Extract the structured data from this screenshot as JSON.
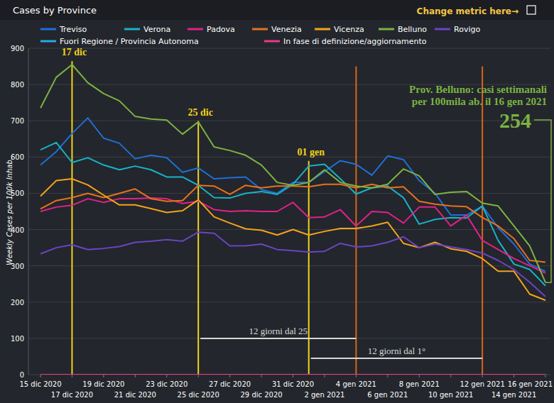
{
  "chart_data": {
    "type": "line",
    "title": "Cases by Province",
    "header_link": "Change metric here→",
    "y_label": "Weekly Cases per 100k Inhab.",
    "categories": [
      "15 dic 2020",
      null,
      "17 dic 2020",
      null,
      "19 dic 2020",
      null,
      "21 dic 2020",
      null,
      "23 dic 2020",
      null,
      "25 dic 2020",
      null,
      "27 dic 2020",
      null,
      "29 dic 2020",
      null,
      "31 dic 2020",
      null,
      "2 gen 2021",
      null,
      "4 gen 2021",
      null,
      "6 gen 2021",
      null,
      "8 gen 2021",
      null,
      "10 gen 2021",
      null,
      "12 gen 2021",
      null,
      "14 gen 2021",
      null,
      "16 gen 2021"
    ],
    "ylim": [
      0,
      900
    ],
    "yticks": [
      0,
      100,
      200,
      300,
      400,
      500,
      600,
      700,
      800,
      900
    ],
    "grid": true,
    "legend": "top",
    "series": [
      {
        "name": "Treviso",
        "color": "#1f6fd6",
        "values": [
          578,
          615,
          665,
          708,
          652,
          638,
          595,
          605,
          598,
          558,
          570,
          540,
          543,
          545,
          510,
          500,
          530,
          530,
          560,
          590,
          580,
          550,
          603,
          593,
          535,
          500,
          440,
          440,
          465,
          405,
          360,
          305,
          285
        ]
      },
      {
        "name": "Verona",
        "color": "#17b3c9",
        "values": [
          620,
          640,
          585,
          598,
          578,
          565,
          575,
          565,
          545,
          545,
          522,
          488,
          487,
          500,
          505,
          497,
          525,
          575,
          580,
          540,
          498,
          515,
          520,
          488,
          415,
          428,
          433,
          432,
          465,
          370,
          305,
          290,
          245
        ]
      },
      {
        "name": "Padova",
        "color": "#e0218a",
        "values": [
          450,
          462,
          467,
          485,
          475,
          485,
          485,
          487,
          485,
          472,
          478,
          455,
          450,
          452,
          450,
          450,
          475,
          433,
          435,
          455,
          410,
          450,
          447,
          418,
          462,
          462,
          410,
          440,
          370,
          345,
          320,
          300,
          280
        ]
      },
      {
        "name": "Venezia",
        "color": "#e8711c",
        "values": [
          457,
          480,
          488,
          500,
          488,
          500,
          512,
          485,
          478,
          480,
          522,
          520,
          497,
          522,
          515,
          520,
          520,
          518,
          525,
          525,
          515,
          525,
          515,
          518,
          478,
          470,
          465,
          463,
          433,
          410,
          375,
          315,
          310
        ]
      },
      {
        "name": "Vicenza",
        "color": "#f5a31b",
        "values": [
          492,
          535,
          540,
          523,
          495,
          468,
          468,
          458,
          447,
          452,
          482,
          435,
          418,
          402,
          398,
          385,
          400,
          385,
          395,
          403,
          403,
          410,
          420,
          362,
          350,
          365,
          347,
          340,
          320,
          285,
          285,
          222,
          205
        ]
      },
      {
        "name": "Belluno",
        "color": "#7cb342",
        "values": [
          735,
          820,
          855,
          805,
          775,
          755,
          712,
          705,
          702,
          663,
          697,
          628,
          618,
          605,
          578,
          530,
          522,
          530,
          565,
          530,
          520,
          515,
          525,
          567,
          548,
          497,
          503,
          505,
          473,
          465,
          410,
          355,
          254
        ]
      },
      {
        "name": "Rovigo",
        "color": "#6a44c4",
        "values": [
          333,
          350,
          358,
          345,
          348,
          353,
          365,
          368,
          372,
          368,
          393,
          390,
          355,
          355,
          360,
          345,
          342,
          338,
          340,
          362,
          352,
          355,
          365,
          380,
          350,
          360,
          352,
          345,
          335,
          315,
          290,
          255,
          215
        ]
      },
      {
        "name": "Fuori Regione / Provincia Autonoma",
        "color": "#2aa8e0",
        "values": [
          null,
          null,
          null,
          null,
          null,
          null,
          null,
          null,
          null,
          null,
          null,
          null,
          null,
          null,
          null,
          null,
          null,
          null,
          null,
          null,
          null,
          null,
          null,
          null,
          null,
          null,
          null,
          null,
          null,
          null,
          null,
          null,
          null
        ]
      },
      {
        "name": "In fase di definizione/aggiornamento",
        "color": "#e8388a",
        "values": [
          0,
          0,
          0,
          0,
          0,
          0,
          0,
          0,
          0,
          0,
          0,
          0,
          0,
          0,
          0,
          0,
          0,
          0,
          0,
          0,
          0,
          0,
          0,
          0,
          0,
          0,
          0,
          0,
          0,
          0,
          0,
          0,
          0
        ]
      }
    ],
    "vlines": [
      {
        "x": 2,
        "y": 880,
        "label": "17 dic",
        "color": "#f2d21b"
      },
      {
        "x": 10,
        "y": 715,
        "label": "25 dic",
        "color": "#f2d21b"
      },
      {
        "x": 17,
        "y": 605,
        "label": "01 gen",
        "color": "#f2d21b"
      },
      {
        "x": 20,
        "y": 850,
        "color": "#d9651c"
      },
      {
        "x": 28,
        "y": 850,
        "color": "#d9651c"
      }
    ],
    "spans": [
      {
        "from": 10,
        "to": 20,
        "y": 100,
        "label": "12 giorni dal 25"
      },
      {
        "from": 17,
        "to": 28,
        "y": 45,
        "label": "12 giorni dal 1°"
      }
    ],
    "callout": {
      "lines": [
        "Prov. Belluno: casi settimanali",
        "per 100mila ab. il 16 gen 2021"
      ],
      "value": 254,
      "series": 5,
      "color": "#7cb342"
    }
  }
}
